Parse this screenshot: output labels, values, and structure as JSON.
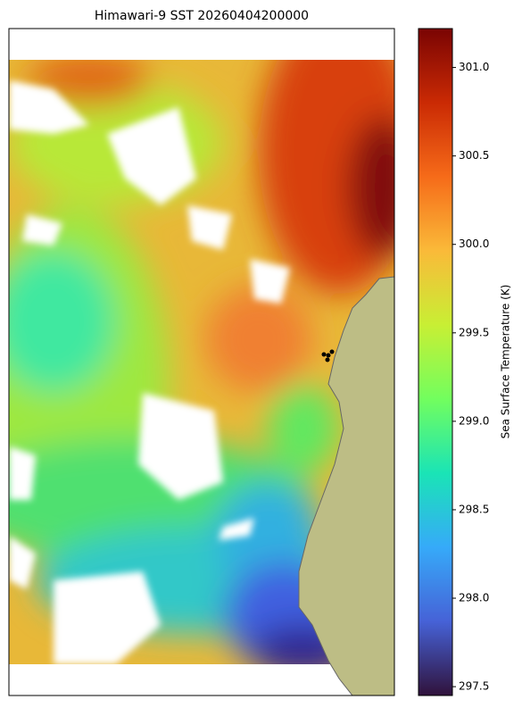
{
  "chart_data": {
    "type": "heatmap",
    "title": "Himawari-9 SST 20260404200000",
    "colorbar_label": "Sea Surface Temperature (K)",
    "colormap": "turbo",
    "clim": [
      297.45,
      301.22
    ],
    "cticks": [
      297.5,
      {
        "value": 298,
        "label": "298.0"
      },
      298.5,
      {
        "value": 299,
        "label": "299.0"
      },
      299.5,
      {
        "value": 300,
        "label": "300.0"
      },
      300.5,
      {
        "value": 301,
        "label": "301.0"
      }
    ]
  }
}
